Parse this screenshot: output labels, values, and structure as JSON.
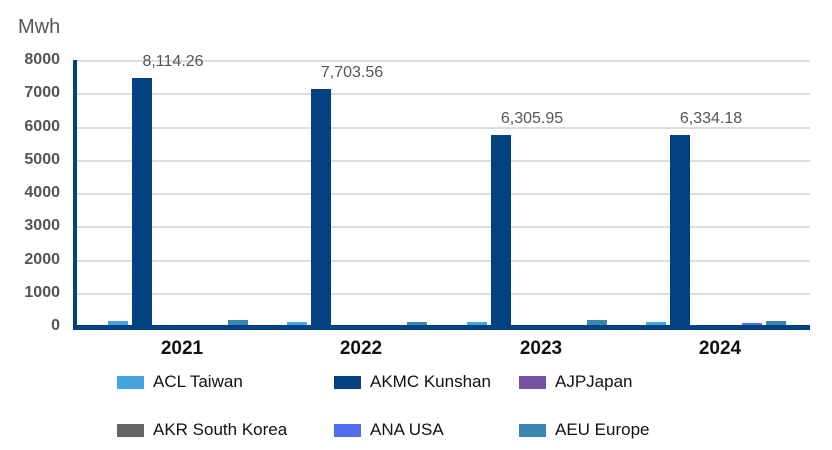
{
  "chart_data": {
    "type": "bar",
    "title": "",
    "ylabel": "Mwh",
    "xlabel": "",
    "ylim": [
      0,
      8000
    ],
    "yticks": [
      0,
      1000,
      2000,
      3000,
      4000,
      5000,
      6000,
      7000,
      8000
    ],
    "grid": true,
    "legend_position": "bottom",
    "categories": [
      "2021",
      "2022",
      "2023",
      "2024"
    ],
    "series": [
      {
        "name": "ACL Taiwan",
        "color": "#44a5e1",
        "values": [
          170,
          160,
          160,
          160
        ]
      },
      {
        "name": "AKMC Kunshan",
        "color": "#024281",
        "values": [
          7500,
          7150,
          5770,
          5770
        ]
      },
      {
        "name": "AJPJapan",
        "color": "#7452a1",
        "values": [
          60,
          50,
          0,
          40
        ]
      },
      {
        "name": "AKR South Korea",
        "color": "#656565",
        "values": [
          60,
          50,
          0,
          0
        ]
      },
      {
        "name": "ANA USA",
        "color": "#516ced",
        "values": [
          60,
          50,
          40,
          120
        ]
      },
      {
        "name": "AEU Europe",
        "color": "#3986b0",
        "values": [
          210,
          160,
          210,
          190
        ]
      }
    ],
    "annotations": [
      "8,114.26",
      "7,703.56",
      "6,305.95",
      "6,334.18"
    ]
  },
  "axis": {
    "unit": "Mwh"
  },
  "totals": [
    "8,114.26",
    "7,703.56",
    "6,305.95",
    "6,334.18"
  ]
}
